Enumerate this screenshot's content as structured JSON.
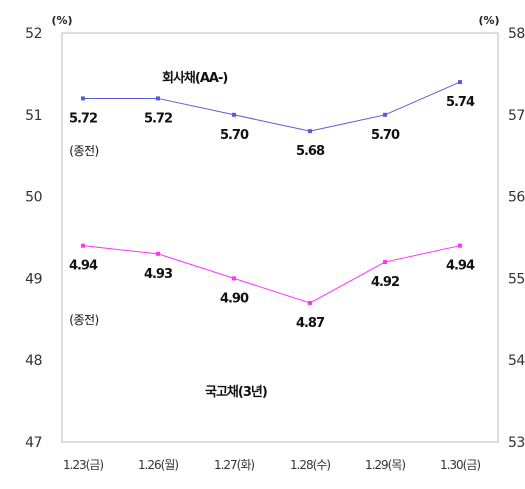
{
  "chart_data": {
    "type": "line",
    "categories": [
      "1.23(금)",
      "1.26(월)",
      "1.27(화)",
      "1.28(수)",
      "1.29(목)",
      "1.30(금)"
    ],
    "left_axis": {
      "unit": "(%)",
      "ylim": [
        47,
        52
      ],
      "ticks": [
        "47",
        "48",
        "49",
        "50",
        "51",
        "52"
      ]
    },
    "right_axis": {
      "unit": "(%)",
      "ylim": [
        53,
        58
      ],
      "ticks": [
        "53",
        "54",
        "55",
        "56",
        "57",
        "58"
      ]
    },
    "series": [
      {
        "name": "회사채(AA-)",
        "axis": "right",
        "color": "#5b5bd6",
        "values": [
          5.72,
          5.72,
          5.7,
          5.68,
          5.7,
          5.74
        ],
        "labels": [
          "5.72",
          "5.72",
          "5.70",
          "5.68",
          "5.70",
          "5.74"
        ]
      },
      {
        "name": "국고채(3년)",
        "axis": "left",
        "color": "#ff33ff",
        "values": [
          4.94,
          4.93,
          4.9,
          4.87,
          4.92,
          4.94
        ],
        "labels": [
          "4.94",
          "4.93",
          "4.90",
          "4.87",
          "4.92",
          "4.94"
        ]
      }
    ],
    "annotations": [
      "(종전)",
      "(종전)"
    ],
    "grid": false,
    "legend": "none"
  }
}
